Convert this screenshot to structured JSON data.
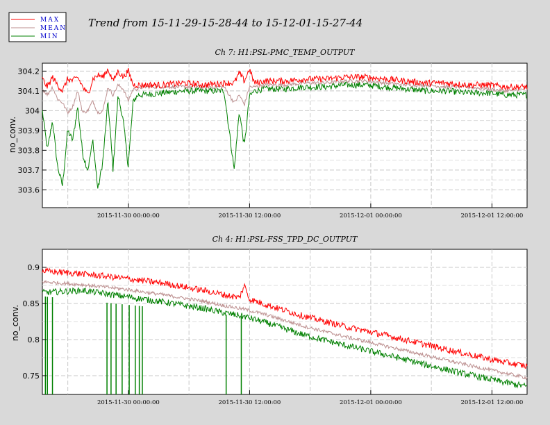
{
  "title": "Trend from 15-11-29-15-28-44 to 15-12-01-15-27-44",
  "legend": {
    "placement": "top-left",
    "items": [
      {
        "label": "MAX",
        "color": "#ff0000"
      },
      {
        "label": "MEAN",
        "color": "#bc8f8f"
      },
      {
        "label": "MIN",
        "color": "#008000"
      }
    ]
  },
  "chart_data": [
    {
      "type": "line",
      "title": "Ch 7: H1:PSL-PMC_TEMP_OUTPUT",
      "ylabel": "no_conv.",
      "xlabel": "",
      "xlim": [
        "2015-11-29 15:28:44",
        "2015-12-01 15:27:44"
      ],
      "ylim": [
        303.51,
        304.24
      ],
      "yticks": [
        303.6,
        303.7,
        303.8,
        303.9,
        304,
        304.1,
        304.2
      ],
      "ytick_labels": [
        "303.6",
        "303.7",
        "303.8",
        "303.9",
        "304",
        "304.1",
        "304.2"
      ],
      "xticks": [
        "2015-11-30 00:00:00",
        "2015-11-30 12:00:00",
        "2015-12-01 00:00:00",
        "2015-12-01 12:00:00"
      ],
      "grid": true,
      "x_hours_axis": "hours after 2015-11-29 15:28:44",
      "series": [
        {
          "name": "MAX",
          "color": "#ff0000",
          "x": [
            0,
            0.5,
            1,
            1.5,
            2,
            2.5,
            3,
            3.5,
            4,
            4.5,
            5,
            5.5,
            6,
            6.5,
            7,
            7.5,
            8,
            8.5,
            9,
            9.5,
            10,
            12,
            14,
            16,
            18,
            19,
            19.5,
            20,
            20.5,
            21,
            22,
            24,
            26,
            28,
            30,
            32,
            34,
            36,
            38,
            40,
            42,
            44,
            46,
            48
          ],
          "y": [
            304.16,
            304.12,
            304.17,
            304.13,
            304.1,
            304.16,
            304.15,
            304.17,
            304.12,
            304.08,
            304.16,
            304.18,
            304.17,
            304.21,
            304.15,
            304.2,
            304.17,
            304.2,
            304.13,
            304.13,
            304.13,
            304.13,
            304.14,
            304.13,
            304.14,
            304.14,
            304.19,
            304.15,
            304.21,
            304.14,
            304.15,
            304.15,
            304.16,
            304.16,
            304.17,
            304.17,
            304.16,
            304.15,
            304.14,
            304.14,
            304.13,
            304.13,
            304.12,
            304.12
          ]
        },
        {
          "name": "MEAN",
          "color": "#bc8f8f",
          "x": [
            0,
            0.5,
            1,
            1.5,
            2,
            2.5,
            3,
            3.5,
            4,
            4.5,
            5,
            5.5,
            6,
            6.5,
            7,
            7.5,
            8,
            8.5,
            9,
            9.5,
            10,
            12,
            14,
            16,
            18,
            19,
            19.5,
            20,
            20.5,
            21,
            22,
            24,
            26,
            28,
            30,
            32,
            34,
            36,
            38,
            40,
            42,
            44,
            46,
            48
          ],
          "y": [
            304.11,
            304.08,
            304.12,
            304.06,
            304.04,
            303.99,
            304.02,
            304.1,
            303.99,
            304.0,
            304.05,
            303.99,
            304.0,
            304.12,
            304.08,
            304.13,
            304.11,
            304.05,
            304.11,
            304.11,
            304.12,
            304.12,
            304.12,
            304.12,
            304.12,
            304.04,
            304.08,
            304.03,
            304.12,
            304.12,
            304.13,
            304.13,
            304.14,
            304.14,
            304.15,
            304.15,
            304.14,
            304.13,
            304.13,
            304.12,
            304.12,
            304.11,
            304.1,
            304.11
          ]
        },
        {
          "name": "MIN",
          "color": "#008000",
          "x": [
            0,
            0.5,
            1,
            1.5,
            2,
            2.5,
            3,
            3.5,
            4,
            4.5,
            5,
            5.5,
            6,
            6.5,
            7,
            7.5,
            8,
            8.5,
            9,
            9.5,
            10,
            12,
            14,
            16,
            18,
            19,
            19.5,
            20,
            20.5,
            21,
            22,
            24,
            26,
            28,
            30,
            32,
            34,
            36,
            38,
            40,
            42,
            44,
            46,
            48
          ],
          "y": [
            304.0,
            303.8,
            303.95,
            303.72,
            303.62,
            303.9,
            303.85,
            304.02,
            303.78,
            303.7,
            303.85,
            303.6,
            303.75,
            304.05,
            303.7,
            304.08,
            303.95,
            303.72,
            304.05,
            304.08,
            304.08,
            304.09,
            304.1,
            304.1,
            304.1,
            303.7,
            304.0,
            303.82,
            304.07,
            304.1,
            304.11,
            304.11,
            304.12,
            304.12,
            304.13,
            304.13,
            304.12,
            304.11,
            304.1,
            304.1,
            304.09,
            304.09,
            304.08,
            304.08
          ]
        }
      ]
    },
    {
      "type": "line",
      "title": "Ch 4: H1:PSL-FSS_TPD_DC_OUTPUT",
      "ylabel": "no_conv.",
      "xlabel": "",
      "xlim": [
        "2015-11-29 15:28:44",
        "2015-12-01 15:27:44"
      ],
      "ylim": [
        0.724,
        0.925
      ],
      "yticks": [
        0.75,
        0.8,
        0.85,
        0.9
      ],
      "ytick_labels": [
        "0.75",
        "0.8",
        "0.85",
        "0.9"
      ],
      "xticks": [
        "2015-11-30 00:00:00",
        "2015-11-30 12:00:00",
        "2015-12-01 00:00:00",
        "2015-12-01 12:00:00"
      ],
      "grid": true,
      "x_hours_axis": "hours after 2015-11-29 15:28:44",
      "series": [
        {
          "name": "MAX",
          "color": "#ff0000",
          "x": [
            0,
            4,
            8,
            12,
            16,
            18,
            19.5,
            20,
            20.5,
            22,
            26,
            30,
            34,
            38,
            42,
            46,
            48
          ],
          "y": [
            0.895,
            0.891,
            0.885,
            0.878,
            0.868,
            0.862,
            0.858,
            0.875,
            0.856,
            0.849,
            0.832,
            0.818,
            0.806,
            0.793,
            0.78,
            0.768,
            0.763
          ]
        },
        {
          "name": "MEAN",
          "color": "#bc8f8f",
          "x": [
            0,
            4,
            8,
            12,
            16,
            18,
            20,
            22,
            26,
            30,
            34,
            38,
            42,
            46,
            48
          ],
          "y": [
            0.88,
            0.876,
            0.87,
            0.862,
            0.853,
            0.847,
            0.842,
            0.835,
            0.818,
            0.804,
            0.791,
            0.778,
            0.765,
            0.753,
            0.747
          ]
        },
        {
          "name": "MIN",
          "color": "#008000",
          "x": [
            0,
            4,
            8,
            12,
            16,
            18,
            20,
            22,
            26,
            30,
            34,
            38,
            42,
            46,
            48
          ],
          "y": [
            0.865,
            0.868,
            0.86,
            0.852,
            0.843,
            0.837,
            0.832,
            0.824,
            0.806,
            0.792,
            0.779,
            0.765,
            0.752,
            0.74,
            0.735
          ]
        }
      ],
      "dropouts_hours_after_start": {
        "min": [
          0.3,
          0.5,
          1.0,
          6.4,
          6.8,
          7.3,
          7.9,
          8.6,
          9.2,
          9.6,
          9.9,
          18.2,
          19.7
        ]
      }
    }
  ]
}
